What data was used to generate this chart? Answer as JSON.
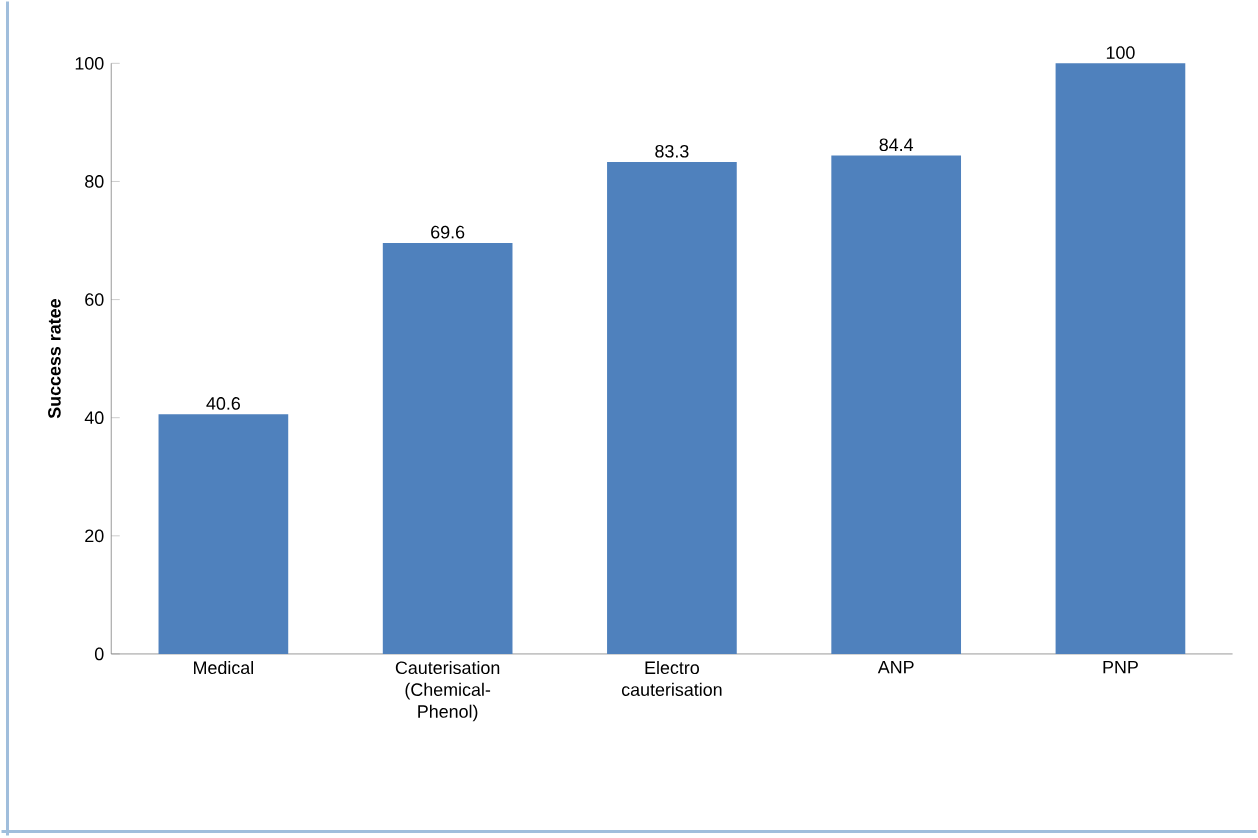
{
  "chart_data": {
    "type": "bar",
    "ylabel": "Success ratee",
    "categories": [
      "Medical",
      "Cauterisation (Chemical-Phenol)",
      "Electro cauterisation",
      "ANP",
      "PNP"
    ],
    "values": [
      40.6,
      69.6,
      83.3,
      84.4,
      100
    ],
    "color": "#4f81bd",
    "ylim": [
      0,
      100
    ],
    "yticks": [
      0,
      20,
      40,
      60,
      80,
      100
    ],
    "data_labels": true
  }
}
